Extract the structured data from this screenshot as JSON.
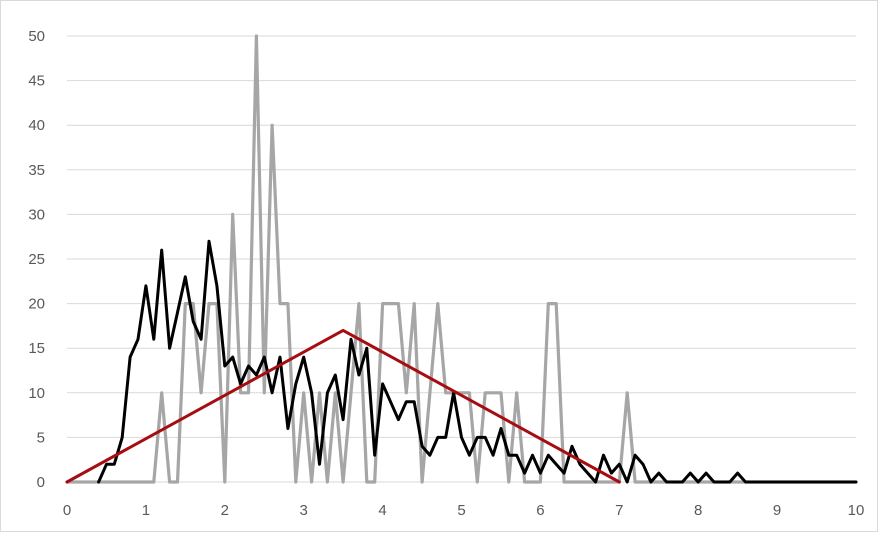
{
  "chart_data": {
    "type": "line",
    "title": "",
    "xlabel": "",
    "ylabel": "",
    "xlim": [
      0,
      10
    ],
    "ylim": [
      0,
      50
    ],
    "x_ticks": [
      "0",
      "1",
      "2",
      "3",
      "4",
      "5",
      "6",
      "7",
      "8",
      "9",
      "10"
    ],
    "y_ticks": [
      "0",
      "5",
      "10",
      "15",
      "20",
      "25",
      "30",
      "35",
      "40",
      "45",
      "50"
    ],
    "grid": "horizontal",
    "legend": "none",
    "series": [
      {
        "color": "#a6a6a6",
        "points": [
          [
            0.0,
            0
          ],
          [
            0.5,
            0
          ],
          [
            1.0,
            0
          ],
          [
            1.1,
            0
          ],
          [
            1.2,
            10
          ],
          [
            1.3,
            0
          ],
          [
            1.4,
            0
          ],
          [
            1.5,
            20
          ],
          [
            1.6,
            20
          ],
          [
            1.7,
            10
          ],
          [
            1.8,
            20
          ],
          [
            1.9,
            20
          ],
          [
            2.0,
            0
          ],
          [
            2.1,
            30
          ],
          [
            2.2,
            10
          ],
          [
            2.3,
            10
          ],
          [
            2.4,
            50
          ],
          [
            2.5,
            10
          ],
          [
            2.6,
            40
          ],
          [
            2.7,
            20
          ],
          [
            2.8,
            20
          ],
          [
            2.9,
            0
          ],
          [
            3.0,
            10
          ],
          [
            3.1,
            0
          ],
          [
            3.2,
            10
          ],
          [
            3.3,
            0
          ],
          [
            3.4,
            10
          ],
          [
            3.5,
            0
          ],
          [
            3.6,
            10
          ],
          [
            3.7,
            20
          ],
          [
            3.8,
            0
          ],
          [
            3.9,
            0
          ],
          [
            4.0,
            20
          ],
          [
            4.1,
            20
          ],
          [
            4.2,
            20
          ],
          [
            4.3,
            10
          ],
          [
            4.4,
            20
          ],
          [
            4.5,
            0
          ],
          [
            4.6,
            10
          ],
          [
            4.7,
            20
          ],
          [
            4.8,
            10
          ],
          [
            4.9,
            10
          ],
          [
            5.0,
            10
          ],
          [
            5.1,
            10
          ],
          [
            5.2,
            0
          ],
          [
            5.3,
            10
          ],
          [
            5.4,
            10
          ],
          [
            5.5,
            10
          ],
          [
            5.6,
            0
          ],
          [
            5.7,
            10
          ],
          [
            5.8,
            0
          ],
          [
            5.9,
            0
          ],
          [
            6.0,
            0
          ],
          [
            6.1,
            20
          ],
          [
            6.2,
            20
          ],
          [
            6.3,
            0
          ],
          [
            6.4,
            0
          ],
          [
            6.5,
            0
          ],
          [
            6.6,
            0
          ],
          [
            6.7,
            0
          ],
          [
            6.8,
            0
          ],
          [
            6.9,
            0
          ],
          [
            7.0,
            0
          ],
          [
            7.1,
            10
          ],
          [
            7.2,
            0
          ],
          [
            7.5,
            0
          ],
          [
            8.0,
            0
          ],
          [
            8.5,
            0
          ],
          [
            9.0,
            0
          ],
          [
            9.5,
            0
          ],
          [
            10.0,
            0
          ]
        ]
      },
      {
        "color": "#000000",
        "points": [
          [
            0.4,
            0
          ],
          [
            0.5,
            2
          ],
          [
            0.6,
            2
          ],
          [
            0.7,
            5
          ],
          [
            0.8,
            14
          ],
          [
            0.9,
            16
          ],
          [
            1.0,
            22
          ],
          [
            1.1,
            16
          ],
          [
            1.2,
            26
          ],
          [
            1.3,
            15
          ],
          [
            1.4,
            19
          ],
          [
            1.5,
            23
          ],
          [
            1.6,
            18
          ],
          [
            1.7,
            16
          ],
          [
            1.8,
            27
          ],
          [
            1.9,
            22
          ],
          [
            2.0,
            13
          ],
          [
            2.1,
            14
          ],
          [
            2.2,
            11
          ],
          [
            2.3,
            13
          ],
          [
            2.4,
            12
          ],
          [
            2.5,
            14
          ],
          [
            2.6,
            10
          ],
          [
            2.7,
            14
          ],
          [
            2.8,
            6
          ],
          [
            2.9,
            11
          ],
          [
            3.0,
            14
          ],
          [
            3.1,
            10
          ],
          [
            3.2,
            2
          ],
          [
            3.3,
            10
          ],
          [
            3.4,
            12
          ],
          [
            3.5,
            7
          ],
          [
            3.6,
            16
          ],
          [
            3.7,
            12
          ],
          [
            3.8,
            15
          ],
          [
            3.9,
            3
          ],
          [
            4.0,
            11
          ],
          [
            4.1,
            9
          ],
          [
            4.2,
            7
          ],
          [
            4.3,
            9
          ],
          [
            4.4,
            9
          ],
          [
            4.5,
            4
          ],
          [
            4.6,
            3
          ],
          [
            4.7,
            5
          ],
          [
            4.8,
            5
          ],
          [
            4.9,
            10
          ],
          [
            5.0,
            5
          ],
          [
            5.1,
            3
          ],
          [
            5.2,
            5
          ],
          [
            5.3,
            5
          ],
          [
            5.4,
            3
          ],
          [
            5.5,
            6
          ],
          [
            5.6,
            3
          ],
          [
            5.7,
            3
          ],
          [
            5.8,
            1
          ],
          [
            5.9,
            3
          ],
          [
            6.0,
            1
          ],
          [
            6.1,
            3
          ],
          [
            6.2,
            2
          ],
          [
            6.3,
            1
          ],
          [
            6.4,
            4
          ],
          [
            6.5,
            2
          ],
          [
            6.6,
            1
          ],
          [
            6.7,
            0
          ],
          [
            6.8,
            3
          ],
          [
            6.9,
            1
          ],
          [
            7.0,
            2
          ],
          [
            7.1,
            0
          ],
          [
            7.2,
            3
          ],
          [
            7.3,
            2
          ],
          [
            7.4,
            0
          ],
          [
            7.5,
            1
          ],
          [
            7.6,
            0
          ],
          [
            7.7,
            0
          ],
          [
            7.8,
            0
          ],
          [
            7.9,
            1
          ],
          [
            8.0,
            0
          ],
          [
            8.1,
            1
          ],
          [
            8.2,
            0
          ],
          [
            8.3,
            0
          ],
          [
            8.4,
            0
          ],
          [
            8.5,
            1
          ],
          [
            8.6,
            0
          ],
          [
            9.0,
            0
          ],
          [
            9.5,
            0
          ],
          [
            10.0,
            0
          ]
        ]
      },
      {
        "color": "#a50d12",
        "points": [
          [
            0,
            0
          ],
          [
            3.5,
            17
          ],
          [
            7,
            0
          ]
        ]
      }
    ]
  }
}
